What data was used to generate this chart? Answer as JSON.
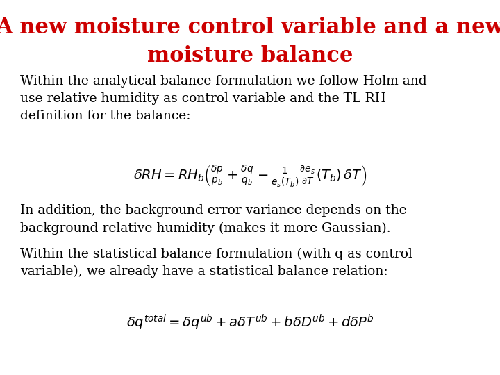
{
  "title_line1": "A new moisture control variable and a new",
  "title_line2": "moisture balance",
  "title_color": "#CC0000",
  "title_fontsize": 22,
  "body_fontsize": 13.5,
  "para1_line1": "Within the analytical balance formulation we follow Holm and",
  "para1_line2": "use relative humidity as control variable and the TL RH",
  "para1_line3": "definition for the balance:",
  "para2_line1": "In addition, the background error variance depends on the",
  "para2_line2": "background relative humidity (makes it more Gaussian).",
  "para3_line1": "Within the statistical balance formulation (with q as control",
  "para3_line2": "variable), we already have a statistical balance relation:",
  "bg_color": "#ffffff",
  "text_color": "#000000",
  "formula_fontsize": 14,
  "body_fontsize_val": 13.5
}
